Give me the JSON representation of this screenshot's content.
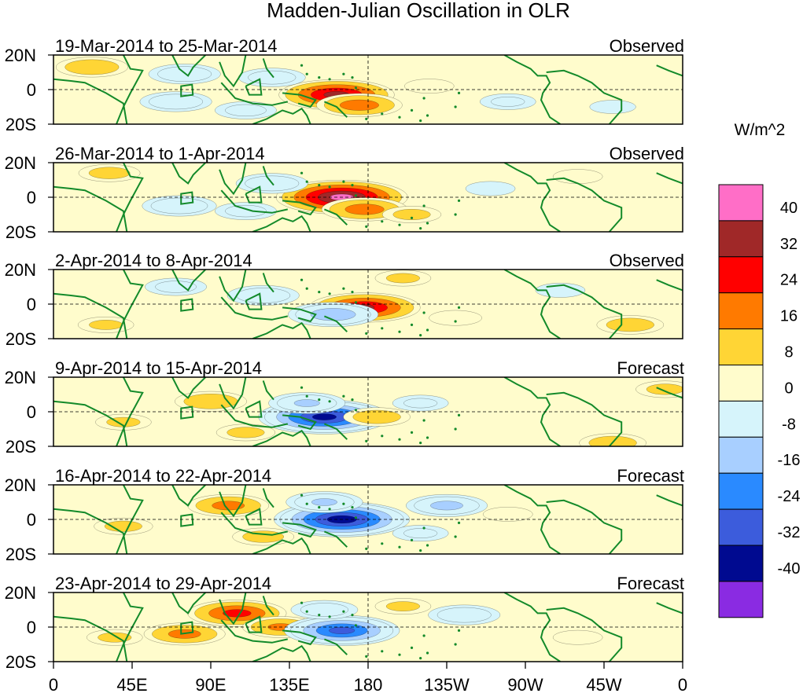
{
  "chart_data": {
    "type": "heatmap",
    "title": "Madden-Julian Oscillation in OLR",
    "colorbar": {
      "unit_label": "W/m^2",
      "tick_labels": [
        "40",
        "32",
        "24",
        "16",
        "8",
        "0",
        "-8",
        "-16",
        "-24",
        "-32",
        "-40"
      ],
      "bins": [
        {
          "color": "#ff6ec7"
        },
        {
          "color": "#a02828"
        },
        {
          "color": "#ff0000"
        },
        {
          "color": "#ff7a00"
        },
        {
          "color": "#ffd535"
        },
        {
          "color": "#fffccc"
        },
        {
          "color": "#d6f4fb"
        },
        {
          "color": "#a8cfff"
        },
        {
          "color": "#2a8aff"
        },
        {
          "color": "#3c5cdc"
        },
        {
          "color": "#000a90"
        },
        {
          "color": "#8a2be2"
        }
      ]
    },
    "x_axis": {
      "range_deg_east": [
        0,
        360
      ],
      "ticks": [
        {
          "label": "0",
          "lon": 0
        },
        {
          "label": "45E",
          "lon": 45
        },
        {
          "label": "90E",
          "lon": 90
        },
        {
          "label": "135E",
          "lon": 135
        },
        {
          "label": "180",
          "lon": 180
        },
        {
          "label": "135W",
          "lon": 225
        },
        {
          "label": "90W",
          "lon": 270
        },
        {
          "label": "45W",
          "lon": 315
        },
        {
          "label": "0",
          "lon": 360
        }
      ]
    },
    "y_axis": {
      "range_deg": [
        -20,
        20
      ],
      "ticks": [
        {
          "label": "20N",
          "lat": 20
        },
        {
          "label": "0",
          "lat": 0
        },
        {
          "label": "20S",
          "lat": -20
        }
      ]
    },
    "panels": [
      {
        "date_range": "19-Mar-2014 to 25-Mar-2014",
        "status": "Observed",
        "anomalies": [
          {
            "lon": 162,
            "lat": -3,
            "value": 34
          },
          {
            "lon": 175,
            "lat": -9,
            "value": 20
          },
          {
            "lon": 22,
            "lat": 13,
            "value": 14
          },
          {
            "lon": 215,
            "lat": 2,
            "value": 6
          },
          {
            "lon": 75,
            "lat": 9,
            "value": -14
          },
          {
            "lon": 125,
            "lat": 7,
            "value": -12
          },
          {
            "lon": 70,
            "lat": -7,
            "value": -14
          },
          {
            "lon": 110,
            "lat": -12,
            "value": -10
          },
          {
            "lon": 260,
            "lat": -7,
            "value": -8
          },
          {
            "lon": 320,
            "lat": -10,
            "value": -5
          }
        ]
      },
      {
        "date_range": "26-Mar-2014 to 1-Apr-2014",
        "status": "Observed",
        "anomalies": [
          {
            "lon": 165,
            "lat": 0,
            "value": 42
          },
          {
            "lon": 178,
            "lat": -7,
            "value": 20
          },
          {
            "lon": 205,
            "lat": -10,
            "value": 9
          },
          {
            "lon": 32,
            "lat": 14,
            "value": 10
          },
          {
            "lon": 72,
            "lat": -5,
            "value": -15
          },
          {
            "lon": 125,
            "lat": 8,
            "value": -14
          },
          {
            "lon": 110,
            "lat": -8,
            "value": -10
          },
          {
            "lon": 250,
            "lat": 5,
            "value": -6
          },
          {
            "lon": 300,
            "lat": 12,
            "value": 6
          }
        ]
      },
      {
        "date_range": "2-Apr-2014 to 8-Apr-2014",
        "status": "Observed",
        "anomalies": [
          {
            "lon": 178,
            "lat": -2,
            "value": 32
          },
          {
            "lon": 160,
            "lat": -6,
            "value": -22
          },
          {
            "lon": 120,
            "lat": 5,
            "value": -14
          },
          {
            "lon": 200,
            "lat": 15,
            "value": 8
          },
          {
            "lon": 30,
            "lat": -12,
            "value": 8
          },
          {
            "lon": 70,
            "lat": 10,
            "value": -10
          },
          {
            "lon": 230,
            "lat": -8,
            "value": 7
          },
          {
            "lon": 290,
            "lat": 8,
            "value": -6
          },
          {
            "lon": 330,
            "lat": -12,
            "value": 12
          }
        ]
      },
      {
        "date_range": "9-Apr-2014 to 15-Apr-2014",
        "status": "Forecast",
        "anomalies": [
          {
            "lon": 155,
            "lat": -3,
            "value": -42
          },
          {
            "lon": 145,
            "lat": 5,
            "value": -16
          },
          {
            "lon": 210,
            "lat": 5,
            "value": -8
          },
          {
            "lon": 90,
            "lat": 6,
            "value": 14
          },
          {
            "lon": 185,
            "lat": -3,
            "value": 12
          },
          {
            "lon": 40,
            "lat": -6,
            "value": 8
          },
          {
            "lon": 110,
            "lat": -12,
            "value": 9
          },
          {
            "lon": 320,
            "lat": -18,
            "value": 12
          },
          {
            "lon": 350,
            "lat": 13,
            "value": 9
          }
        ]
      },
      {
        "date_range": "16-Apr-2014 to 22-Apr-2014",
        "status": "Forecast",
        "anomalies": [
          {
            "lon": 165,
            "lat": 0,
            "value": -44
          },
          {
            "lon": 155,
            "lat": 10,
            "value": -16
          },
          {
            "lon": 225,
            "lat": 8,
            "value": -18
          },
          {
            "lon": 100,
            "lat": 8,
            "value": 18
          },
          {
            "lon": 40,
            "lat": -4,
            "value": 9
          },
          {
            "lon": 120,
            "lat": -10,
            "value": 10
          },
          {
            "lon": 210,
            "lat": -8,
            "value": -8
          },
          {
            "lon": 260,
            "lat": 3,
            "value": 6
          }
        ]
      },
      {
        "date_range": "23-Apr-2014 to 29-Apr-2014",
        "status": "Forecast",
        "anomalies": [
          {
            "lon": 105,
            "lat": 8,
            "value": 26
          },
          {
            "lon": 130,
            "lat": 0,
            "value": 16
          },
          {
            "lon": 75,
            "lat": -4,
            "value": 18
          },
          {
            "lon": 165,
            "lat": -2,
            "value": -34
          },
          {
            "lon": 155,
            "lat": 10,
            "value": -12
          },
          {
            "lon": 235,
            "lat": 7,
            "value": -14
          },
          {
            "lon": 200,
            "lat": 12,
            "value": 8
          },
          {
            "lon": 35,
            "lat": -6,
            "value": 8
          },
          {
            "lon": 300,
            "lat": -6,
            "value": 6
          }
        ]
      }
    ]
  }
}
